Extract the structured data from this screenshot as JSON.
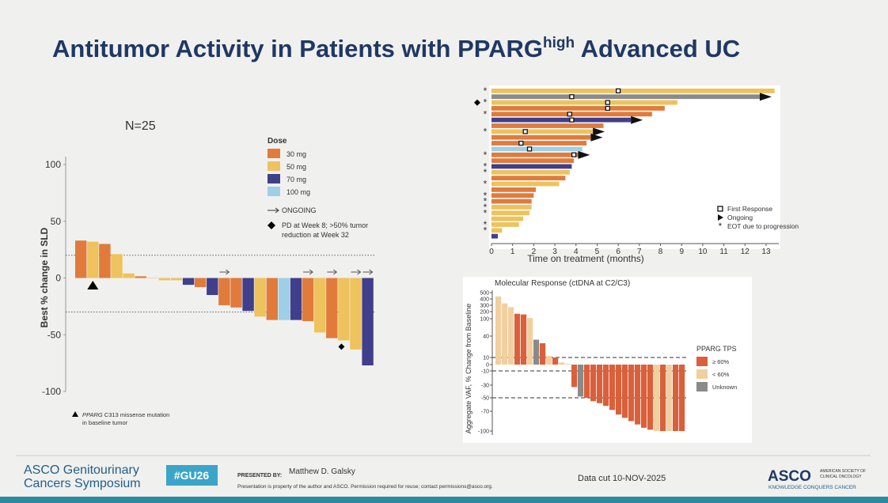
{
  "slide": {
    "title_main": "Antitumor Activity in Patients with PPARG",
    "title_sup": "high",
    "title_end": " Advanced UC",
    "meeting_line1": "ASCO Genitourinary",
    "meeting_line2": "Cancers Symposium",
    "hashtag": "#GU26",
    "presented_by": "PRESENTED BY:",
    "presenter": "Matthew D. Galsky",
    "permission": "Presentation is property of the author and ASCO. Permission required for reuse; contact permissions@asco.org.",
    "data_cut": "Data cut 10-NOV-2025",
    "logo": "ASCO",
    "logo_line1": "AMERICAN SOCIETY OF",
    "logo_line2": "CLINICAL ONCOLOGY",
    "logo_tagline": "KNOWLEDGE CONQUERS CANCER"
  },
  "chart_data": [
    {
      "type": "waterfall",
      "annotation": "N=25",
      "ylabel": "Best % change in SLD",
      "ylim": [
        -100,
        100
      ],
      "yticks": [
        100,
        50,
        0,
        -50,
        -100
      ],
      "reference_lines": [
        20,
        -30
      ],
      "legend_title": "Dose",
      "series": [
        {
          "name": "30 mg",
          "color": "#e07b3c",
          "values": [
            33,
            null,
            30,
            null,
            null,
            1.5,
            null,
            null,
            null,
            null,
            -8,
            null,
            -24,
            -26,
            null,
            null,
            -37,
            null,
            null,
            -38,
            null,
            -53,
            null,
            null,
            null
          ]
        },
        {
          "name": "50 mg",
          "color": "#eec25c",
          "values": [
            null,
            32,
            null,
            21,
            4,
            null,
            0,
            -2,
            -2,
            null,
            null,
            null,
            null,
            null,
            null,
            -34,
            null,
            null,
            null,
            null,
            -48,
            null,
            -55,
            -63,
            null
          ]
        },
        {
          "name": "70 mg",
          "color": "#3f3f8c",
          "values": [
            null,
            null,
            null,
            null,
            null,
            null,
            null,
            null,
            null,
            -6,
            null,
            -15,
            null,
            null,
            -29,
            null,
            null,
            null,
            -37,
            null,
            null,
            null,
            null,
            null,
            -77
          ]
        },
        {
          "name": "100 mg",
          "color": "#9fcfe6",
          "values": [
            null,
            null,
            null,
            null,
            null,
            null,
            null,
            null,
            null,
            null,
            null,
            null,
            null,
            null,
            null,
            null,
            null,
            -37,
            null,
            null,
            null,
            null,
            null,
            null,
            null
          ]
        }
      ],
      "ongoing_label": "ONGOING",
      "ongoing": [
        false,
        false,
        false,
        false,
        false,
        false,
        false,
        false,
        false,
        false,
        false,
        false,
        true,
        false,
        false,
        false,
        false,
        false,
        false,
        true,
        false,
        true,
        false,
        true,
        true
      ],
      "pd_label": "PD at Week 8; >50% tumor",
      "pd_label_2": "reduction at Week 32",
      "pd": [
        false,
        false,
        false,
        false,
        false,
        false,
        false,
        false,
        false,
        false,
        false,
        false,
        false,
        false,
        false,
        false,
        false,
        false,
        false,
        false,
        false,
        false,
        true,
        false,
        false
      ],
      "mutation_label": "PPARG",
      "mutation_label_rest": " C313 missense mutation",
      "mutation_label_2": "in baseline tumor",
      "mutation": [
        false,
        true,
        false,
        false,
        false,
        false,
        false,
        false,
        false,
        false,
        false,
        false,
        false,
        false,
        false,
        false,
        false,
        false,
        false,
        false,
        false,
        false,
        false,
        false,
        false
      ]
    },
    {
      "type": "swimmer",
      "xlabel": "Time on treatment (months)",
      "xlim": [
        0,
        13.6
      ],
      "xticks": [
        0,
        1,
        2,
        3,
        4,
        5,
        6,
        7,
        8,
        9,
        10,
        11,
        12,
        13
      ],
      "values": [
        13.4,
        12.7,
        8.8,
        8.2,
        7.6,
        6.6,
        5.3,
        4.8,
        4.7,
        4.5,
        4.3,
        4.1,
        3.9,
        3.8,
        3.7,
        3.5,
        3.2,
        2.1,
        2.0,
        1.9,
        1.9,
        1.8,
        1.5,
        1.3,
        0.5,
        0.3
      ],
      "colors": [
        "#eec25c",
        "#8a8a8a",
        "#eec25c",
        "#e07b3c",
        "#e07b3c",
        "#3f3f8c",
        "#e07b3c",
        "#eec25c",
        "#e07b3c",
        "#e07b3c",
        "#9fcfe6",
        "#e07b3c",
        "#e07b3c",
        "#3f3f8c",
        "#eec25c",
        "#e07b3c",
        "#eec25c",
        "#e07b3c",
        "#e07b3c",
        "#e07b3c",
        "#eec25c",
        "#eec25c",
        "#eec25c",
        "#eec25c",
        "#eec25c",
        "#3f3f8c"
      ],
      "response": [
        6.0,
        3.8,
        5.5,
        5.5,
        3.7,
        3.8,
        null,
        1.6,
        null,
        1.4,
        1.8,
        3.9,
        null,
        null,
        null,
        null,
        null,
        null,
        null,
        null,
        null,
        null,
        null,
        null,
        null,
        null
      ],
      "ongoing": [
        false,
        true,
        false,
        false,
        false,
        true,
        false,
        true,
        true,
        false,
        false,
        true,
        false,
        false,
        false,
        false,
        false,
        false,
        false,
        false,
        false,
        false,
        false,
        false,
        false,
        false
      ],
      "eot": [
        true,
        false,
        true,
        false,
        true,
        false,
        false,
        true,
        false,
        false,
        false,
        true,
        false,
        true,
        true,
        false,
        true,
        false,
        true,
        true,
        true,
        true,
        false,
        true,
        true,
        false
      ],
      "pd": [
        false,
        false,
        true,
        false,
        false,
        false,
        false,
        false,
        false,
        false,
        false,
        false,
        false,
        false,
        false,
        false,
        false,
        false,
        false,
        false,
        false,
        false,
        false,
        false,
        false,
        false
      ],
      "legend": [
        "First Response",
        "Ongoing",
        "EOT due to progression"
      ]
    },
    {
      "type": "waterfall",
      "title": "Molecular Response (ctDNA at C2/C3)",
      "ylabel": "Aggregate VAF, % Change from Baseline",
      "ylim": [
        -100,
        500
      ],
      "yticks": [
        500,
        400,
        300,
        200,
        100,
        40,
        10,
        0,
        -10,
        -30,
        -50,
        -70,
        -100
      ],
      "reference_lines": [
        10,
        -10,
        -50
      ],
      "legend_title": "PPARG TPS",
      "series": [
        {
          "name": "≥ 60%",
          "color": "#d9603b",
          "values": [
            null,
            null,
            null,
            170,
            160,
            null,
            null,
            30,
            null,
            10,
            null,
            null,
            -33,
            null,
            -50,
            -55,
            -58,
            -62,
            -68,
            -75,
            -80,
            -85,
            -90,
            -95,
            -98,
            null,
            -100,
            null,
            -100,
            -100
          ]
        },
        {
          "name": "< 60%",
          "color": "#f2cfa0",
          "values": [
            440,
            330,
            270,
            null,
            null,
            110,
            null,
            null,
            12,
            null,
            3,
            1,
            null,
            null,
            null,
            null,
            null,
            null,
            null,
            null,
            null,
            null,
            null,
            null,
            null,
            -100,
            null,
            -100,
            null,
            null
          ]
        },
        {
          "name": "Unknown",
          "color": "#8a8a8a",
          "values": [
            null,
            null,
            null,
            null,
            null,
            null,
            35,
            null,
            null,
            null,
            null,
            null,
            null,
            -48,
            null,
            null,
            null,
            null,
            null,
            null,
            null,
            null,
            null,
            null,
            null,
            null,
            null,
            null,
            null,
            null
          ]
        }
      ]
    }
  ]
}
